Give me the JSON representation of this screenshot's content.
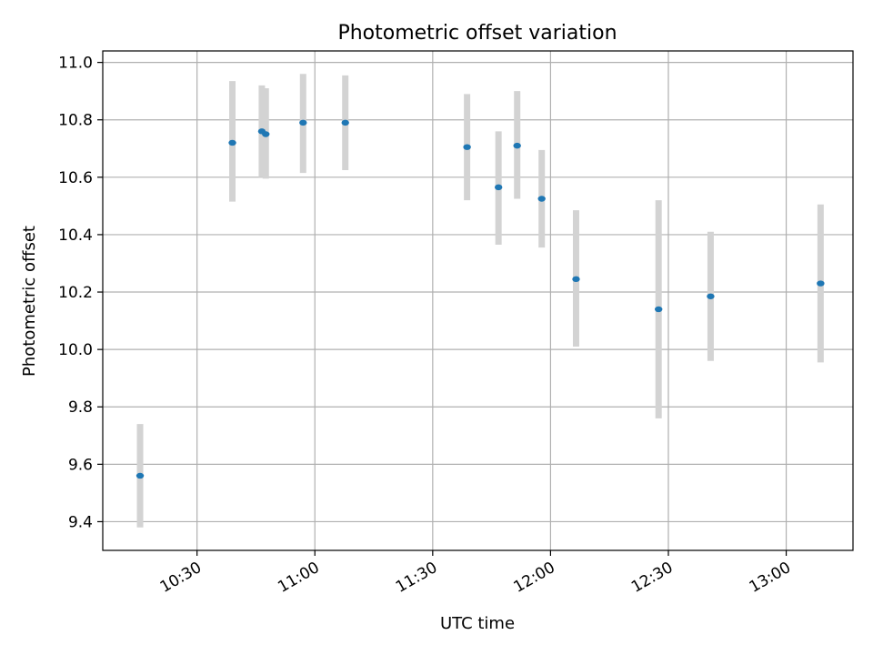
{
  "chart_data": {
    "type": "scatter",
    "title": "Photometric offset variation",
    "xlabel": "UTC time",
    "ylabel": "Photometric offset",
    "xlim": [
      "10:06",
      "13:17"
    ],
    "ylim": [
      9.3,
      11.04
    ],
    "grid": true,
    "x_ticks": [
      "10:30",
      "11:00",
      "11:30",
      "12:00",
      "12:30",
      "13:00"
    ],
    "y_ticks": [
      "9.4",
      "9.6",
      "9.8",
      "10.0",
      "10.2",
      "10.4",
      "10.6",
      "10.8",
      "11.0"
    ],
    "colors": {
      "point": "#1f77b4",
      "errorbar": "#d3d3d3",
      "grid": "#b0b0b0"
    },
    "series": [
      {
        "points": [
          {
            "x": "10:15:30",
            "y": 9.56,
            "y_low": 9.38,
            "y_high": 9.74
          },
          {
            "x": "10:39:00",
            "y": 10.72,
            "y_low": 10.515,
            "y_high": 10.935
          },
          {
            "x": "10:46:30",
            "y": 10.76,
            "y_low": 10.6,
            "y_high": 10.92
          },
          {
            "x": "10:47:30",
            "y": 10.75,
            "y_low": 10.595,
            "y_high": 10.91
          },
          {
            "x": "10:57:00",
            "y": 10.79,
            "y_low": 10.615,
            "y_high": 10.96
          },
          {
            "x": "11:07:45",
            "y": 10.79,
            "y_low": 10.625,
            "y_high": 10.955
          },
          {
            "x": "11:38:45",
            "y": 10.705,
            "y_low": 10.52,
            "y_high": 10.89
          },
          {
            "x": "11:46:45",
            "y": 10.565,
            "y_low": 10.365,
            "y_high": 10.76
          },
          {
            "x": "11:51:30",
            "y": 10.71,
            "y_low": 10.525,
            "y_high": 10.9
          },
          {
            "x": "11:57:45",
            "y": 10.525,
            "y_low": 10.355,
            "y_high": 10.695
          },
          {
            "x": "12:06:30",
            "y": 10.245,
            "y_low": 10.01,
            "y_high": 10.485
          },
          {
            "x": "12:27:30",
            "y": 10.14,
            "y_low": 9.76,
            "y_high": 10.52
          },
          {
            "x": "12:40:45",
            "y": 10.185,
            "y_low": 9.96,
            "y_high": 10.41
          },
          {
            "x": "13:08:45",
            "y": 10.23,
            "y_low": 9.955,
            "y_high": 10.505
          }
        ]
      }
    ]
  }
}
